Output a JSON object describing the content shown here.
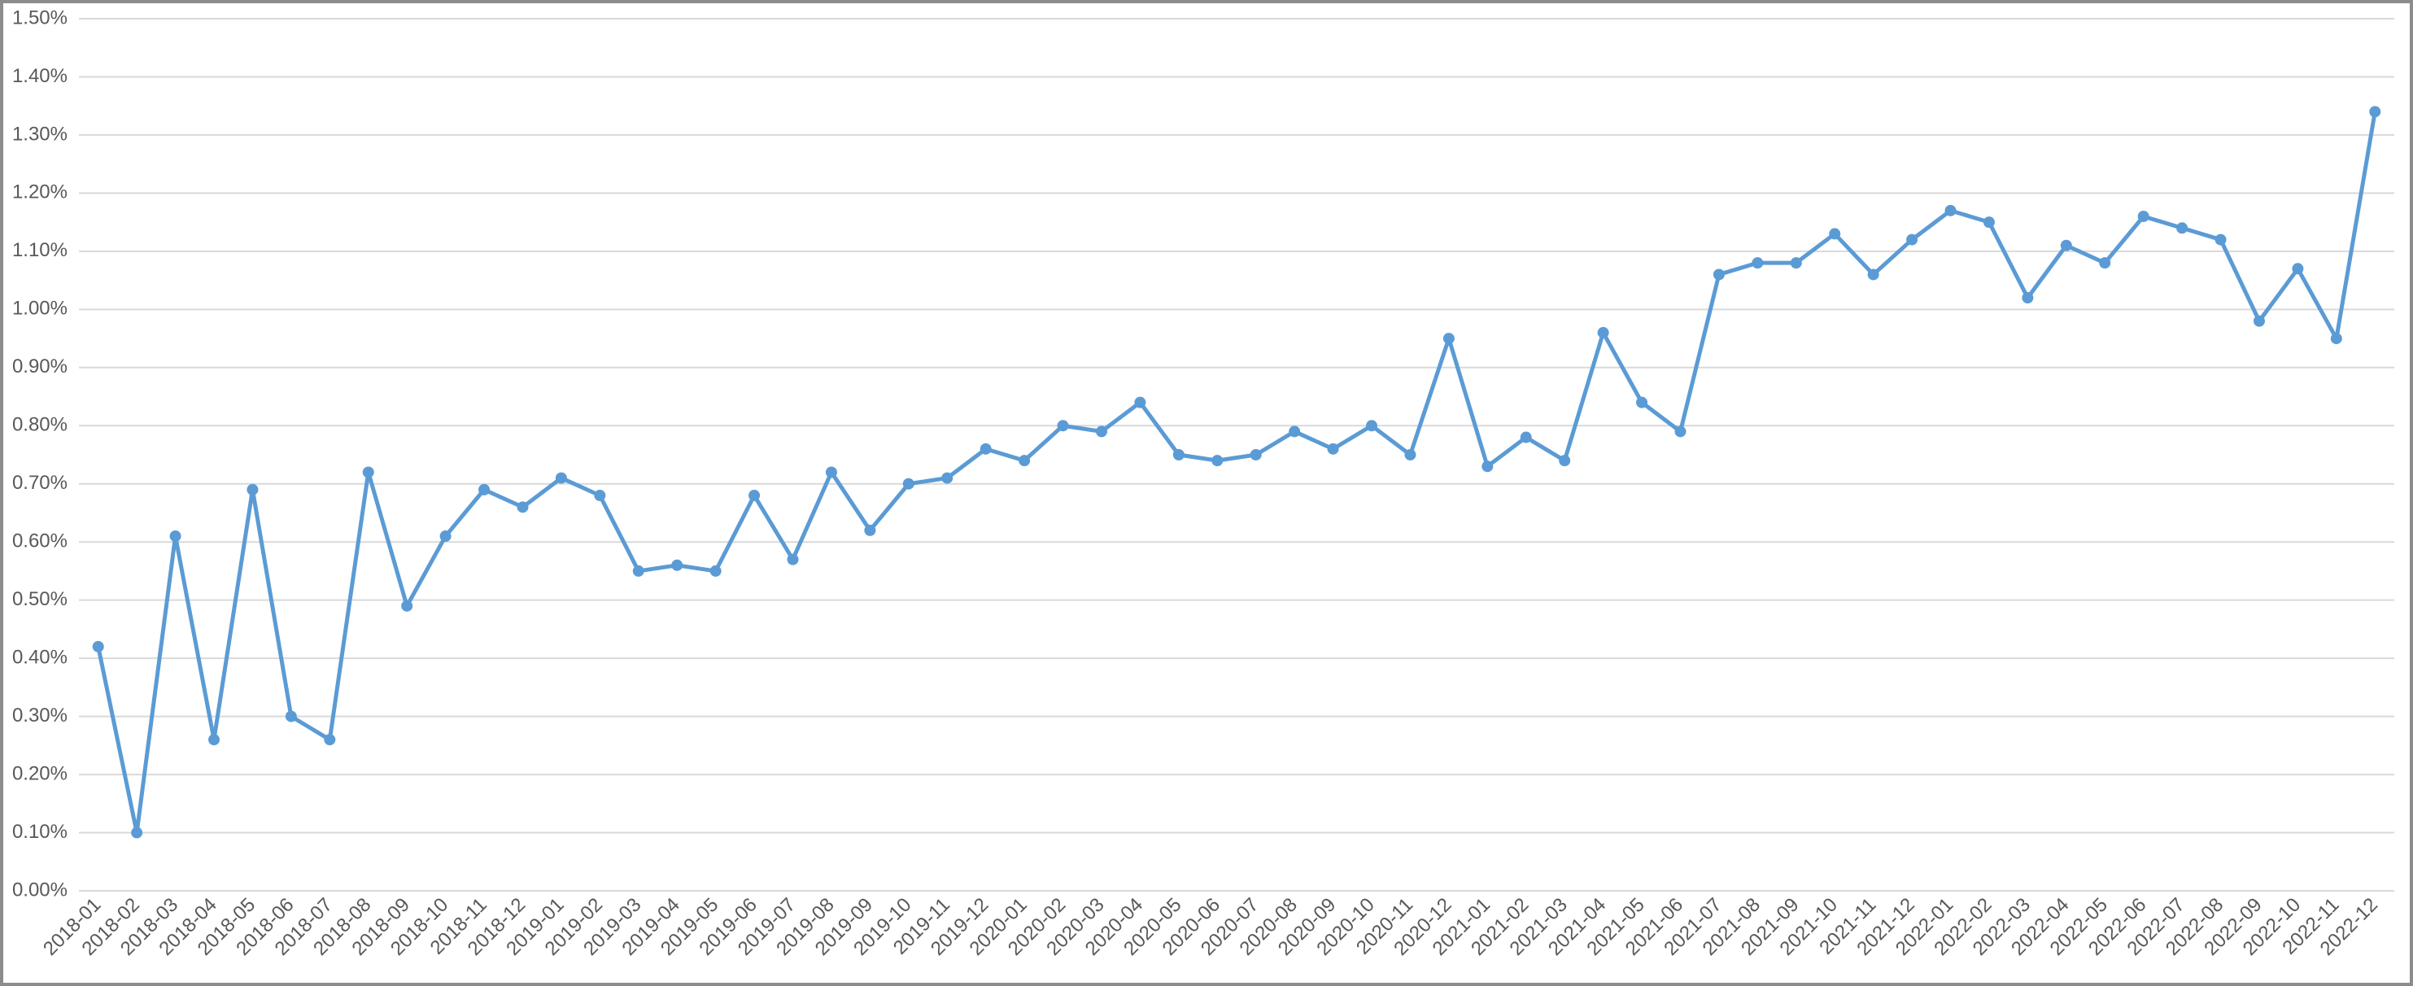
{
  "chart_data": {
    "type": "line",
    "categories": [
      "2018-01",
      "2018-02",
      "2018-03",
      "2018-04",
      "2018-05",
      "2018-06",
      "2018-07",
      "2018-08",
      "2018-09",
      "2018-10",
      "2018-11",
      "2018-12",
      "2019-01",
      "2019-02",
      "2019-03",
      "2019-04",
      "2019-05",
      "2019-06",
      "2019-07",
      "2019-08",
      "2019-09",
      "2019-10",
      "2019-11",
      "2019-12",
      "2020-01",
      "2020-02",
      "2020-03",
      "2020-04",
      "2020-05",
      "2020-06",
      "2020-07",
      "2020-08",
      "2020-09",
      "2020-10",
      "2020-11",
      "2020-12",
      "2021-01",
      "2021-02",
      "2021-03",
      "2021-04",
      "2021-05",
      "2021-06",
      "2021-07",
      "2021-08",
      "2021-09",
      "2021-10",
      "2021-11",
      "2021-12",
      "2022-01",
      "2022-02",
      "2022-03",
      "2022-04",
      "2022-05",
      "2022-06",
      "2022-07",
      "2022-08",
      "2022-09",
      "2022-10",
      "2022-11",
      "2022-12"
    ],
    "values": [
      0.42,
      0.1,
      0.61,
      0.26,
      0.69,
      0.3,
      0.26,
      0.72,
      0.49,
      0.61,
      0.69,
      0.66,
      0.71,
      0.68,
      0.55,
      0.56,
      0.55,
      0.68,
      0.57,
      0.72,
      0.62,
      0.7,
      0.71,
      0.76,
      0.74,
      0.8,
      0.79,
      0.84,
      0.75,
      0.74,
      0.75,
      0.79,
      0.76,
      0.8,
      0.75,
      0.95,
      0.73,
      0.78,
      0.74,
      0.96,
      0.84,
      0.79,
      1.06,
      1.08,
      1.08,
      1.13,
      1.06,
      1.12,
      1.17,
      1.15,
      1.02,
      1.11,
      1.08,
      1.16,
      1.14,
      1.12,
      0.98,
      1.07,
      0.95,
      1.34
    ],
    "color": "#5b9bd5",
    "ylim": [
      0,
      1.5
    ],
    "yticks": [
      {
        "value": 0,
        "label": "0.00%"
      },
      {
        "value": 0.1,
        "label": "0.10%"
      },
      {
        "value": 0.2,
        "label": "0.20%"
      },
      {
        "value": 0.3,
        "label": "0.30%"
      },
      {
        "value": 0.4,
        "label": "0.40%"
      },
      {
        "value": 0.5,
        "label": "0.50%"
      },
      {
        "value": 0.6,
        "label": "0.60%"
      },
      {
        "value": 0.7,
        "label": "0.70%"
      },
      {
        "value": 0.8,
        "label": "0.80%"
      },
      {
        "value": 0.9,
        "label": "0.90%"
      },
      {
        "value": 1.0,
        "label": "1.00%"
      },
      {
        "value": 1.1,
        "label": "1.10%"
      },
      {
        "value": 1.2,
        "label": "1.20%"
      },
      {
        "value": 1.3,
        "label": "1.30%"
      },
      {
        "value": 1.4,
        "label": "1.40%"
      },
      {
        "value": 1.5,
        "label": "1.50%"
      }
    ],
    "grid": true
  }
}
